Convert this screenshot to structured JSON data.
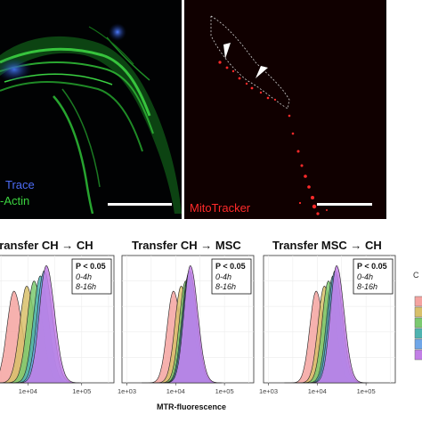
{
  "micrographs": {
    "left_labels": [
      "Trace",
      "-Actin"
    ],
    "right_label": "MitoTracker"
  },
  "chart_data": [
    {
      "type": "area",
      "title": "Transfer CH → CH",
      "annotation": {
        "pvalue": "P < 0.05",
        "lines": [
          "0-4h",
          "8-16h"
        ]
      },
      "x_scale": "log10",
      "x_tick_labels": [
        "1e+04",
        "1e+05"
      ],
      "series": [
        {
          "color": "#f4a3a0",
          "peak_x": 5500
        },
        {
          "color": "#d8c06a",
          "peak_x": 9500
        },
        {
          "color": "#7bc96f",
          "peak_x": 13000
        },
        {
          "color": "#4fb3b0",
          "peak_x": 17000
        },
        {
          "color": "#6fa6e8",
          "peak_x": 20000
        },
        {
          "color": "#c27fe6",
          "peak_x": 22000
        }
      ]
    },
    {
      "type": "area",
      "title": "Transfer CH → MSC",
      "annotation": {
        "pvalue": "P < 0.05",
        "lines": [
          "0-4h",
          "8-16h"
        ]
      },
      "x_scale": "log10",
      "x_tick_labels": [
        "1e+03",
        "1e+04",
        "1e+05"
      ],
      "xlabel": "MTR-fluorescence",
      "series": [
        {
          "color": "#f4a3a0",
          "peak_x": 9000
        },
        {
          "color": "#d8c06a",
          "peak_x": 13000
        },
        {
          "color": "#7bc96f",
          "peak_x": 16000
        },
        {
          "color": "#4fb3b0",
          "peak_x": 18000
        },
        {
          "color": "#6fa6e8",
          "peak_x": 19000
        },
        {
          "color": "#c27fe6",
          "peak_x": 20000
        }
      ]
    },
    {
      "type": "area",
      "title": "Transfer MSC → CH",
      "annotation": {
        "pvalue": "P < 0.05",
        "lines": [
          "0-4h",
          "8-16h"
        ]
      },
      "x_scale": "log10",
      "x_tick_labels": [
        "1e+03",
        "1e+04",
        "1e+05"
      ],
      "series": [
        {
          "color": "#f4a3a0",
          "peak_x": 9500
        },
        {
          "color": "#d8c06a",
          "peak_x": 14000
        },
        {
          "color": "#7bc96f",
          "peak_x": 17000
        },
        {
          "color": "#4fb3b0",
          "peak_x": 21000
        },
        {
          "color": "#6fa6e8",
          "peak_x": 23000
        },
        {
          "color": "#c27fe6",
          "peak_x": 25000
        }
      ]
    }
  ],
  "legend": {
    "label": "C",
    "colors": [
      "#f4a3a0",
      "#d8c06a",
      "#7bc96f",
      "#4fb3b0",
      "#6fa6e8",
      "#c27fe6"
    ]
  }
}
